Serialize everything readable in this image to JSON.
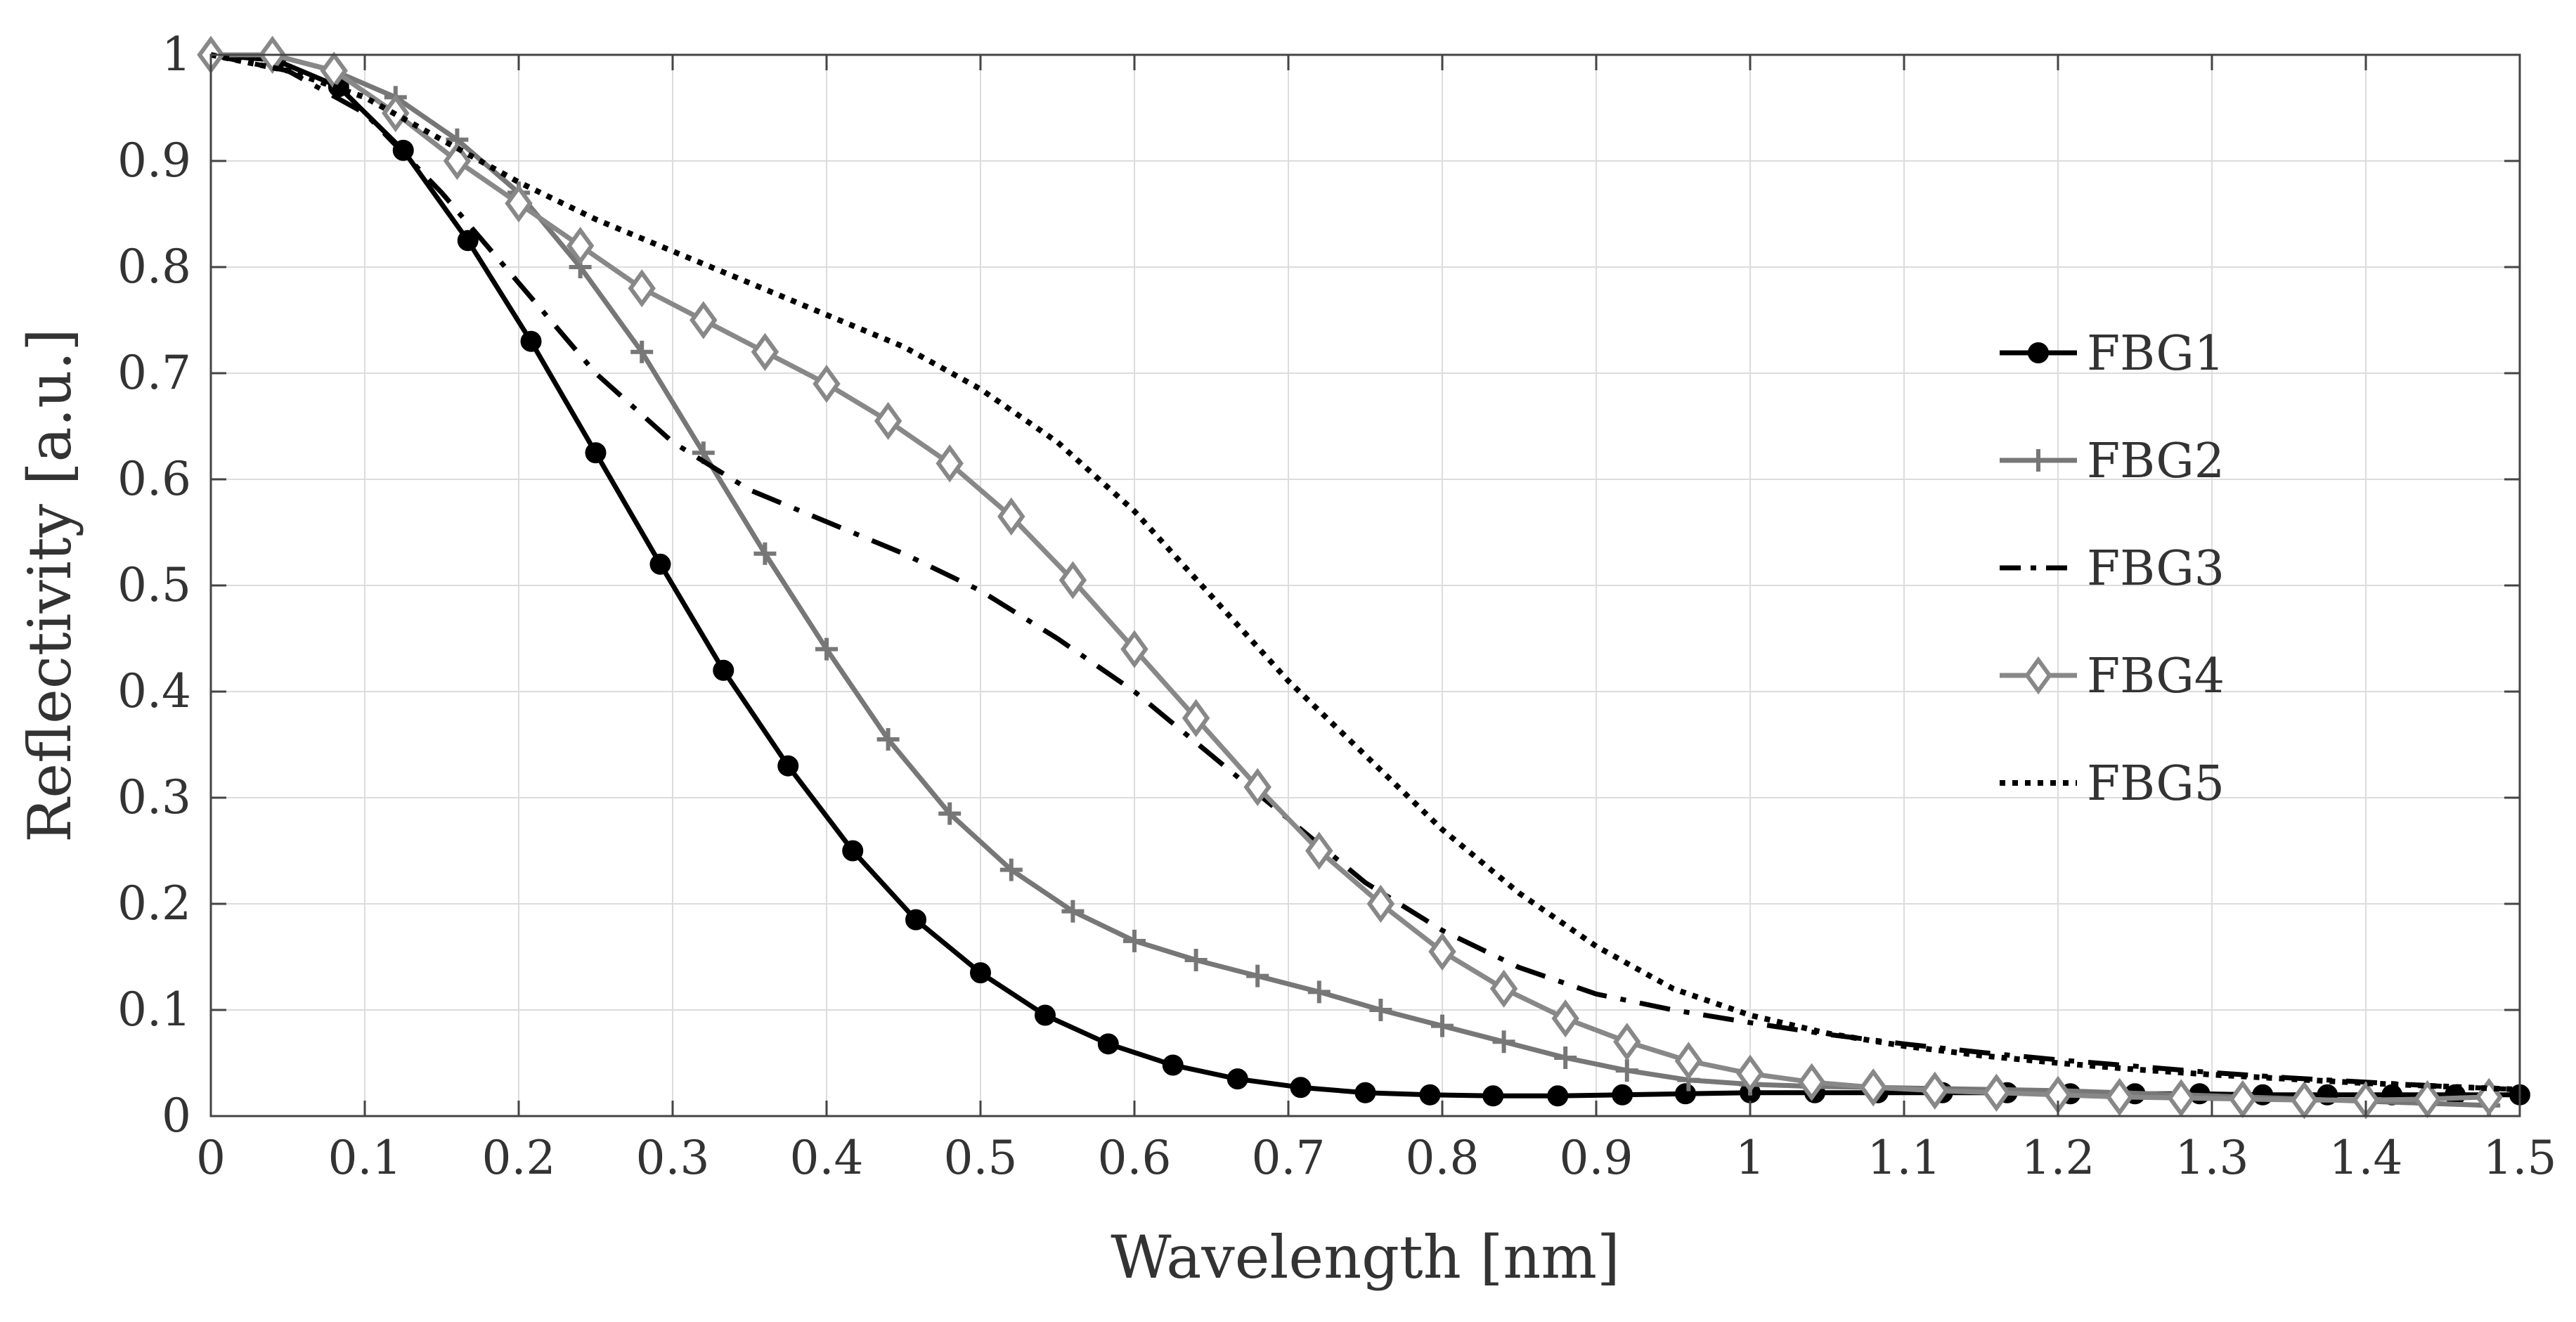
{
  "chart_data": {
    "type": "line",
    "title": "",
    "xlabel": "Wavelength [nm]",
    "ylabel": "Reflectivity [a.u.]",
    "xlim": [
      0,
      1.5
    ],
    "ylim": [
      0,
      1
    ],
    "grid": true,
    "legend_position": "right",
    "x_ticks": [
      0,
      0.1,
      0.2,
      0.3,
      0.4,
      0.5,
      0.6,
      0.7,
      0.8,
      0.9,
      1,
      1.1,
      1.2,
      1.3,
      1.4,
      1.5
    ],
    "x_tick_labels": [
      "0",
      "0.1",
      "0.2",
      "0.3",
      "0.4",
      "0.5",
      "0.6",
      "0.7",
      "0.8",
      "0.9",
      "1",
      "1.1",
      "1.2",
      "1.3",
      "1.4",
      "1.5"
    ],
    "y_ticks": [
      0,
      0.1,
      0.2,
      0.3,
      0.4,
      0.5,
      0.6,
      0.7,
      0.8,
      0.9,
      1
    ],
    "y_tick_labels": [
      "0",
      "0.1",
      "0.2",
      "0.3",
      "0.4",
      "0.5",
      "0.6",
      "0.7",
      "0.8",
      "0.9",
      "1"
    ],
    "series": [
      {
        "name": "FBG1",
        "color": "#000000",
        "line_style": "solid",
        "marker": "circle",
        "x": [
          0,
          0.042,
          0.083,
          0.125,
          0.167,
          0.208,
          0.25,
          0.292,
          0.333,
          0.375,
          0.417,
          0.458,
          0.5,
          0.542,
          0.583,
          0.625,
          0.667,
          0.708,
          0.75,
          0.792,
          0.833,
          0.875,
          0.917,
          0.958,
          1,
          1.042,
          1.083,
          1.125,
          1.167,
          1.208,
          1.25,
          1.292,
          1.333,
          1.375,
          1.417,
          1.458,
          1.5
        ],
        "y": [
          1,
          0.995,
          0.97,
          0.91,
          0.825,
          0.73,
          0.625,
          0.52,
          0.42,
          0.33,
          0.25,
          0.185,
          0.135,
          0.095,
          0.068,
          0.048,
          0.035,
          0.027,
          0.022,
          0.02,
          0.019,
          0.019,
          0.02,
          0.021,
          0.022,
          0.022,
          0.022,
          0.022,
          0.022,
          0.021,
          0.021,
          0.021,
          0.02,
          0.02,
          0.02,
          0.02,
          0.02
        ]
      },
      {
        "name": "FBG2",
        "color": "#777777",
        "line_style": "solid",
        "marker": "plus",
        "x": [
          0,
          0.04,
          0.08,
          0.12,
          0.16,
          0.2,
          0.24,
          0.28,
          0.32,
          0.36,
          0.4,
          0.44,
          0.48,
          0.52,
          0.56,
          0.6,
          0.64,
          0.68,
          0.72,
          0.76,
          0.8,
          0.84,
          0.88,
          0.92,
          0.96,
          1,
          1.04,
          1.08,
          1.12,
          1.16,
          1.2,
          1.24,
          1.28,
          1.32,
          1.36,
          1.4,
          1.44,
          1.48
        ],
        "y": [
          1,
          1,
          0.985,
          0.96,
          0.92,
          0.87,
          0.8,
          0.72,
          0.625,
          0.53,
          0.44,
          0.355,
          0.285,
          0.232,
          0.193,
          0.165,
          0.147,
          0.132,
          0.117,
          0.1,
          0.085,
          0.07,
          0.055,
          0.043,
          0.034,
          0.03,
          0.028,
          0.027,
          0.026,
          0.025,
          0.024,
          0.022,
          0.02,
          0.018,
          0.016,
          0.014,
          0.012,
          0.01
        ]
      },
      {
        "name": "FBG3",
        "color": "#000000",
        "line_style": "dash-dot",
        "marker": "none",
        "x": [
          0,
          0.05,
          0.1,
          0.15,
          0.2,
          0.25,
          0.3,
          0.35,
          0.4,
          0.45,
          0.5,
          0.55,
          0.6,
          0.65,
          0.7,
          0.75,
          0.8,
          0.85,
          0.9,
          0.95,
          1,
          1.05,
          1.1,
          1.15,
          1.2,
          1.25,
          1.3,
          1.35,
          1.4,
          1.45,
          1.5
        ],
        "y": [
          1,
          0.985,
          0.945,
          0.87,
          0.785,
          0.7,
          0.635,
          0.59,
          0.56,
          0.53,
          0.495,
          0.45,
          0.4,
          0.34,
          0.28,
          0.22,
          0.175,
          0.14,
          0.115,
          0.1,
          0.088,
          0.077,
          0.068,
          0.06,
          0.053,
          0.047,
          0.041,
          0.036,
          0.032,
          0.028,
          0.025
        ]
      },
      {
        "name": "FBG4",
        "color": "#888888",
        "line_style": "solid",
        "marker": "diamond",
        "x": [
          0,
          0.04,
          0.08,
          0.12,
          0.16,
          0.2,
          0.24,
          0.28,
          0.32,
          0.36,
          0.4,
          0.44,
          0.48,
          0.52,
          0.56,
          0.6,
          0.64,
          0.68,
          0.72,
          0.76,
          0.8,
          0.84,
          0.88,
          0.92,
          0.96,
          1,
          1.04,
          1.08,
          1.12,
          1.16,
          1.2,
          1.24,
          1.28,
          1.32,
          1.36,
          1.4,
          1.44,
          1.48
        ],
        "y": [
          1,
          1,
          0.985,
          0.945,
          0.9,
          0.86,
          0.82,
          0.78,
          0.75,
          0.72,
          0.69,
          0.655,
          0.615,
          0.565,
          0.505,
          0.44,
          0.375,
          0.31,
          0.25,
          0.2,
          0.155,
          0.12,
          0.092,
          0.07,
          0.052,
          0.04,
          0.032,
          0.027,
          0.024,
          0.022,
          0.02,
          0.018,
          0.017,
          0.016,
          0.015,
          0.015,
          0.016,
          0.018
        ]
      },
      {
        "name": "FBG5",
        "color": "#000000",
        "line_style": "dotted",
        "marker": "none",
        "x": [
          0,
          0.05,
          0.1,
          0.15,
          0.2,
          0.25,
          0.3,
          0.35,
          0.4,
          0.45,
          0.5,
          0.55,
          0.6,
          0.65,
          0.7,
          0.75,
          0.8,
          0.85,
          0.9,
          0.95,
          1,
          1.05,
          1.1,
          1.15,
          1.2,
          1.25,
          1.3,
          1.35,
          1.4,
          1.45,
          1.5
        ],
        "y": [
          1,
          0.985,
          0.96,
          0.92,
          0.88,
          0.845,
          0.815,
          0.785,
          0.755,
          0.725,
          0.685,
          0.635,
          0.57,
          0.49,
          0.41,
          0.34,
          0.27,
          0.21,
          0.16,
          0.12,
          0.095,
          0.078,
          0.066,
          0.057,
          0.05,
          0.044,
          0.039,
          0.035,
          0.031,
          0.028,
          0.025
        ]
      }
    ]
  }
}
